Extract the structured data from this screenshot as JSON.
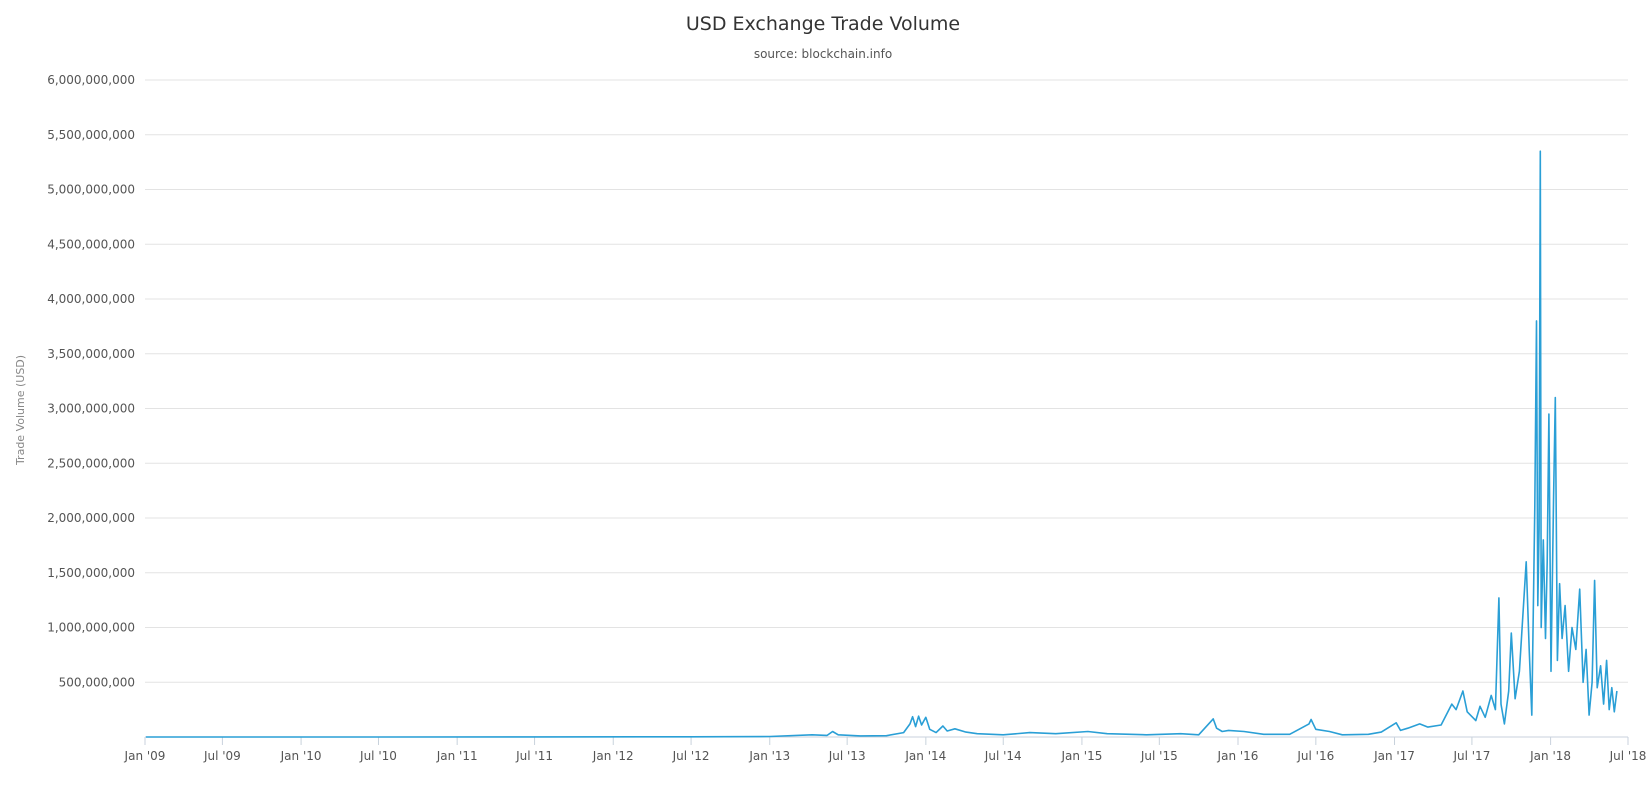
{
  "chart_data": {
    "type": "line",
    "title": "USD Exchange Trade Volume",
    "subtitle": "source: blockchain.info",
    "ylabel": "Trade Volume (USD)",
    "xlabel": "",
    "x_axis": {
      "type": "date",
      "range": [
        "2009-01-01",
        "2018-07-01"
      ],
      "ticks": [
        {
          "date": "2009-01-01",
          "label": "Jan '09"
        },
        {
          "date": "2009-07-01",
          "label": "Jul '09"
        },
        {
          "date": "2010-01-01",
          "label": "Jan '10"
        },
        {
          "date": "2010-07-01",
          "label": "Jul '10"
        },
        {
          "date": "2011-01-01",
          "label": "Jan '11"
        },
        {
          "date": "2011-07-01",
          "label": "Jul '11"
        },
        {
          "date": "2012-01-01",
          "label": "Jan '12"
        },
        {
          "date": "2012-07-01",
          "label": "Jul '12"
        },
        {
          "date": "2013-01-01",
          "label": "Jan '13"
        },
        {
          "date": "2013-07-01",
          "label": "Jul '13"
        },
        {
          "date": "2014-01-01",
          "label": "Jan '14"
        },
        {
          "date": "2014-07-01",
          "label": "Jul '14"
        },
        {
          "date": "2015-01-01",
          "label": "Jan '15"
        },
        {
          "date": "2015-07-01",
          "label": "Jul '15"
        },
        {
          "date": "2016-01-01",
          "label": "Jan '16"
        },
        {
          "date": "2016-07-01",
          "label": "Jul '16"
        },
        {
          "date": "2017-01-01",
          "label": "Jan '17"
        },
        {
          "date": "2017-07-01",
          "label": "Jul '17"
        },
        {
          "date": "2018-01-01",
          "label": "Jan '18"
        },
        {
          "date": "2018-07-01",
          "label": "Jul '18"
        }
      ]
    },
    "y_axis": {
      "range": [
        0,
        6000000000
      ],
      "ticks": [
        {
          "value": 500000000,
          "label": "500,000,000"
        },
        {
          "value": 1000000000,
          "label": "1,000,000,000"
        },
        {
          "value": 1500000000,
          "label": "1,500,000,000"
        },
        {
          "value": 2000000000,
          "label": "2,000,000,000"
        },
        {
          "value": 2500000000,
          "label": "2,500,000,000"
        },
        {
          "value": 3000000000,
          "label": "3,000,000,000"
        },
        {
          "value": 3500000000,
          "label": "3,500,000,000"
        },
        {
          "value": 4000000000,
          "label": "4,000,000,000"
        },
        {
          "value": 4500000000,
          "label": "4,500,000,000"
        },
        {
          "value": 5000000000,
          "label": "5,000,000,000"
        },
        {
          "value": 5500000000,
          "label": "5,500,000,000"
        },
        {
          "value": 6000000000,
          "label": "6,000,000,000"
        }
      ]
    },
    "grid": true,
    "legend": "none",
    "colors": {
      "series": "#2a9fd6",
      "grid": "#e3e3e3",
      "axis": "#c8d2dc"
    },
    "series": [
      {
        "color": "#2a9fd6",
        "points": [
          {
            "x": "2009-01-03",
            "y": 0
          },
          {
            "x": "2010-07-01",
            "y": 0
          },
          {
            "x": "2011-07-01",
            "y": 1000000
          },
          {
            "x": "2012-07-01",
            "y": 2000000
          },
          {
            "x": "2013-01-01",
            "y": 5000000
          },
          {
            "x": "2013-04-10",
            "y": 20000000
          },
          {
            "x": "2013-05-15",
            "y": 15000000
          },
          {
            "x": "2013-05-28",
            "y": 50000000
          },
          {
            "x": "2013-06-10",
            "y": 20000000
          },
          {
            "x": "2013-08-01",
            "y": 10000000
          },
          {
            "x": "2013-10-01",
            "y": 12000000
          },
          {
            "x": "2013-11-10",
            "y": 40000000
          },
          {
            "x": "2013-11-25",
            "y": 120000000
          },
          {
            "x": "2013-12-01",
            "y": 185000000
          },
          {
            "x": "2013-12-08",
            "y": 95000000
          },
          {
            "x": "2013-12-15",
            "y": 190000000
          },
          {
            "x": "2013-12-22",
            "y": 110000000
          },
          {
            "x": "2014-01-01",
            "y": 180000000
          },
          {
            "x": "2014-01-10",
            "y": 70000000
          },
          {
            "x": "2014-01-25",
            "y": 40000000
          },
          {
            "x": "2014-02-10",
            "y": 100000000
          },
          {
            "x": "2014-02-20",
            "y": 55000000
          },
          {
            "x": "2014-03-10",
            "y": 75000000
          },
          {
            "x": "2014-04-05",
            "y": 45000000
          },
          {
            "x": "2014-05-01",
            "y": 30000000
          },
          {
            "x": "2014-07-01",
            "y": 20000000
          },
          {
            "x": "2014-09-01",
            "y": 40000000
          },
          {
            "x": "2014-11-01",
            "y": 30000000
          },
          {
            "x": "2015-01-15",
            "y": 50000000
          },
          {
            "x": "2015-03-01",
            "y": 30000000
          },
          {
            "x": "2015-06-01",
            "y": 20000000
          },
          {
            "x": "2015-08-20",
            "y": 30000000
          },
          {
            "x": "2015-10-01",
            "y": 20000000
          },
          {
            "x": "2015-11-04",
            "y": 165000000
          },
          {
            "x": "2015-11-12",
            "y": 80000000
          },
          {
            "x": "2015-11-25",
            "y": 50000000
          },
          {
            "x": "2015-12-10",
            "y": 60000000
          },
          {
            "x": "2016-01-15",
            "y": 50000000
          },
          {
            "x": "2016-03-01",
            "y": 25000000
          },
          {
            "x": "2016-05-01",
            "y": 25000000
          },
          {
            "x": "2016-06-15",
            "y": 120000000
          },
          {
            "x": "2016-06-20",
            "y": 160000000
          },
          {
            "x": "2016-07-01",
            "y": 70000000
          },
          {
            "x": "2016-08-02",
            "y": 50000000
          },
          {
            "x": "2016-09-01",
            "y": 20000000
          },
          {
            "x": "2016-11-01",
            "y": 25000000
          },
          {
            "x": "2016-12-01",
            "y": 45000000
          },
          {
            "x": "2017-01-05",
            "y": 130000000
          },
          {
            "x": "2017-01-15",
            "y": 60000000
          },
          {
            "x": "2017-02-01",
            "y": 80000000
          },
          {
            "x": "2017-03-01",
            "y": 120000000
          },
          {
            "x": "2017-03-20",
            "y": 90000000
          },
          {
            "x": "2017-04-20",
            "y": 110000000
          },
          {
            "x": "2017-05-15",
            "y": 300000000
          },
          {
            "x": "2017-05-25",
            "y": 250000000
          },
          {
            "x": "2017-06-10",
            "y": 420000000
          },
          {
            "x": "2017-06-20",
            "y": 230000000
          },
          {
            "x": "2017-07-10",
            "y": 150000000
          },
          {
            "x": "2017-07-20",
            "y": 280000000
          },
          {
            "x": "2017-08-01",
            "y": 180000000
          },
          {
            "x": "2017-08-15",
            "y": 380000000
          },
          {
            "x": "2017-08-25",
            "y": 250000000
          },
          {
            "x": "2017-09-02",
            "y": 1270000000
          },
          {
            "x": "2017-09-07",
            "y": 300000000
          },
          {
            "x": "2017-09-15",
            "y": 120000000
          },
          {
            "x": "2017-09-25",
            "y": 420000000
          },
          {
            "x": "2017-10-01",
            "y": 950000000
          },
          {
            "x": "2017-10-10",
            "y": 350000000
          },
          {
            "x": "2017-10-20",
            "y": 600000000
          },
          {
            "x": "2017-10-28",
            "y": 1100000000
          },
          {
            "x": "2017-11-05",
            "y": 1600000000
          },
          {
            "x": "2017-11-12",
            "y": 800000000
          },
          {
            "x": "2017-11-18",
            "y": 200000000
          },
          {
            "x": "2017-11-25",
            "y": 2100000000
          },
          {
            "x": "2017-11-29",
            "y": 3800000000
          },
          {
            "x": "2017-12-02",
            "y": 1200000000
          },
          {
            "x": "2017-12-05",
            "y": 1900000000
          },
          {
            "x": "2017-12-08",
            "y": 5350000000
          },
          {
            "x": "2017-12-10",
            "y": 1000000000
          },
          {
            "x": "2017-12-15",
            "y": 1800000000
          },
          {
            "x": "2017-12-20",
            "y": 900000000
          },
          {
            "x": "2017-12-24",
            "y": 1600000000
          },
          {
            "x": "2017-12-28",
            "y": 2950000000
          },
          {
            "x": "2018-01-02",
            "y": 600000000
          },
          {
            "x": "2018-01-08",
            "y": 2200000000
          },
          {
            "x": "2018-01-12",
            "y": 3100000000
          },
          {
            "x": "2018-01-17",
            "y": 700000000
          },
          {
            "x": "2018-01-22",
            "y": 1400000000
          },
          {
            "x": "2018-01-28",
            "y": 900000000
          },
          {
            "x": "2018-02-04",
            "y": 1200000000
          },
          {
            "x": "2018-02-12",
            "y": 600000000
          },
          {
            "x": "2018-02-20",
            "y": 1000000000
          },
          {
            "x": "2018-03-01",
            "y": 800000000
          },
          {
            "x": "2018-03-10",
            "y": 1350000000
          },
          {
            "x": "2018-03-18",
            "y": 500000000
          },
          {
            "x": "2018-03-25",
            "y": 800000000
          },
          {
            "x": "2018-04-01",
            "y": 200000000
          },
          {
            "x": "2018-04-08",
            "y": 500000000
          },
          {
            "x": "2018-04-14",
            "y": 1430000000
          },
          {
            "x": "2018-04-20",
            "y": 450000000
          },
          {
            "x": "2018-04-28",
            "y": 650000000
          },
          {
            "x": "2018-05-05",
            "y": 300000000
          },
          {
            "x": "2018-05-12",
            "y": 700000000
          },
          {
            "x": "2018-05-18",
            "y": 250000000
          },
          {
            "x": "2018-05-24",
            "y": 450000000
          },
          {
            "x": "2018-05-30",
            "y": 230000000
          },
          {
            "x": "2018-06-05",
            "y": 420000000
          }
        ]
      }
    ]
  }
}
